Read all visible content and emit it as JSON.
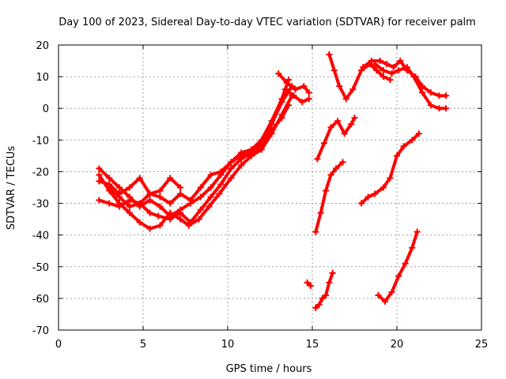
{
  "chart_data": {
    "type": "scatter",
    "title": "Day 100 of 2023, Sidereal Day-to-day VTEC variation (SDTVAR) for receiver palm",
    "xlabel": "GPS time / hours",
    "ylabel": "SDTVAR / TECUs",
    "xlim": [
      0,
      25
    ],
    "ylim": [
      -70,
      20
    ],
    "xticks": [
      0,
      5,
      10,
      15,
      20,
      25
    ],
    "yticks": [
      -70,
      -60,
      -50,
      -40,
      -30,
      -20,
      -10,
      0,
      10,
      20
    ],
    "grid": true,
    "color": "#ff0000",
    "series": [
      {
        "x": [
          2.4,
          3.0,
          3.6,
          4.2,
          4.8,
          5.4,
          5.9,
          6.6,
          7.2,
          7.8,
          8.4,
          9.0,
          9.6,
          10.2,
          10.8,
          11.4,
          12.0,
          12.6,
          13.2,
          13.6
        ],
        "y": [
          -29,
          -30,
          -31,
          -29,
          -30,
          -33,
          -34,
          -35,
          -33,
          -36,
          -32,
          -28,
          -24,
          -19,
          -16,
          -14,
          -11,
          -7,
          -3,
          1
        ]
      },
      {
        "x": [
          2.4,
          3.0,
          3.6,
          4.2,
          4.8,
          5.4,
          6.0,
          6.6,
          7.2,
          7.7,
          8.3,
          8.9,
          9.5,
          10.2,
          10.8,
          11.4,
          12.0,
          12.6,
          13.2,
          13.8
        ],
        "y": [
          -21,
          -26,
          -30,
          -33,
          -36,
          -38,
          -37,
          -33,
          -35,
          -37,
          -35,
          -31,
          -27,
          -22,
          -18,
          -15,
          -13,
          -8,
          -2,
          4
        ]
      },
      {
        "x": [
          2.4,
          3.0,
          3.6,
          4.2,
          4.8,
          5.4,
          6.0,
          6.6,
          7.2,
          7.8,
          8.4,
          9.0,
          9.6,
          10.2,
          10.8,
          11.4,
          12.0,
          12.6,
          13.2,
          13.8
        ],
        "y": [
          -19,
          -22,
          -25,
          -28,
          -31,
          -29,
          -31,
          -34,
          -32,
          -30,
          -28,
          -25,
          -21,
          -17,
          -15,
          -14,
          -12,
          -5,
          2,
          7
        ]
      },
      {
        "x": [
          3.0,
          3.6,
          4.2,
          4.8,
          5.4,
          6.0,
          6.6,
          7.2,
          7.8,
          8.4,
          9.0,
          9.6,
          10.2,
          10.8,
          11.4,
          12.0,
          12.6,
          13.2,
          13.6
        ],
        "y": [
          -25,
          -28,
          -31,
          -30,
          -27,
          -28,
          -30,
          -27,
          -29,
          -25,
          -21,
          -20,
          -17,
          -14,
          -13,
          -10,
          -4,
          3,
          9
        ]
      },
      {
        "x": [
          2.4,
          3.0,
          3.6,
          4.2,
          4.8,
          5.4,
          6.0,
          6.6,
          7.2
        ],
        "y": [
          -23,
          -24,
          -27,
          -25,
          -22,
          -27,
          -26,
          -22,
          -25
        ]
      },
      {
        "x": [
          13.0,
          13.5,
          14.0,
          14.5,
          14.8
        ],
        "y": [
          11,
          8,
          6,
          7,
          5
        ]
      },
      {
        "x": [
          13.4,
          13.9,
          14.4,
          14.8
        ],
        "y": [
          6,
          4,
          2,
          3
        ]
      },
      {
        "x": [
          14.7,
          14.9
        ],
        "y": [
          -55,
          -56
        ]
      },
      {
        "x": [
          15.2,
          15.4,
          15.6,
          15.8,
          16.0,
          16.2
        ],
        "y": [
          -63,
          -62,
          -60,
          -59,
          -55,
          -52
        ]
      },
      {
        "x": [
          15.2,
          15.5,
          15.8,
          16.1,
          16.4,
          16.8
        ],
        "y": [
          -39,
          -33,
          -26,
          -21,
          -19,
          -17
        ]
      },
      {
        "x": [
          15.3,
          15.7,
          16.1,
          16.5,
          16.9,
          17.3,
          17.5
        ],
        "y": [
          -16,
          -11,
          -6,
          -4,
          -8,
          -5,
          -3
        ]
      },
      {
        "x": [
          16.0,
          16.3,
          16.6,
          17.0,
          17.4,
          17.9,
          18.4,
          18.8,
          19.2,
          19.6
        ],
        "y": [
          17,
          12,
          7,
          3,
          6,
          12,
          14,
          12,
          10,
          9
        ]
      },
      {
        "x": [
          17.9,
          18.3,
          18.7,
          19.2,
          19.6,
          20.0,
          20.4,
          20.9,
          21.3
        ],
        "y": [
          -30,
          -28,
          -27,
          -25,
          -22,
          -15,
          -12,
          -10,
          -8
        ]
      },
      {
        "x": [
          18.0,
          18.5,
          19.0,
          19.4,
          19.8,
          20.2,
          20.6,
          21.1,
          21.5,
          22.0,
          22.5,
          22.9
        ],
        "y": [
          13,
          15,
          15,
          14,
          13,
          15,
          12,
          10,
          7,
          5,
          4,
          4
        ]
      },
      {
        "x": [
          18.7,
          19.2,
          19.7,
          20.1,
          20.6,
          21.0,
          21.5,
          22.0,
          22.5,
          22.9
        ],
        "y": [
          14,
          12,
          11,
          12,
          13,
          10,
          5,
          1,
          0,
          0
        ]
      },
      {
        "x": [
          18.9,
          19.3,
          19.7,
          20.1,
          20.5,
          20.9,
          21.2
        ],
        "y": [
          -59,
          -61,
          -58,
          -53,
          -49,
          -44,
          -39
        ]
      }
    ]
  }
}
